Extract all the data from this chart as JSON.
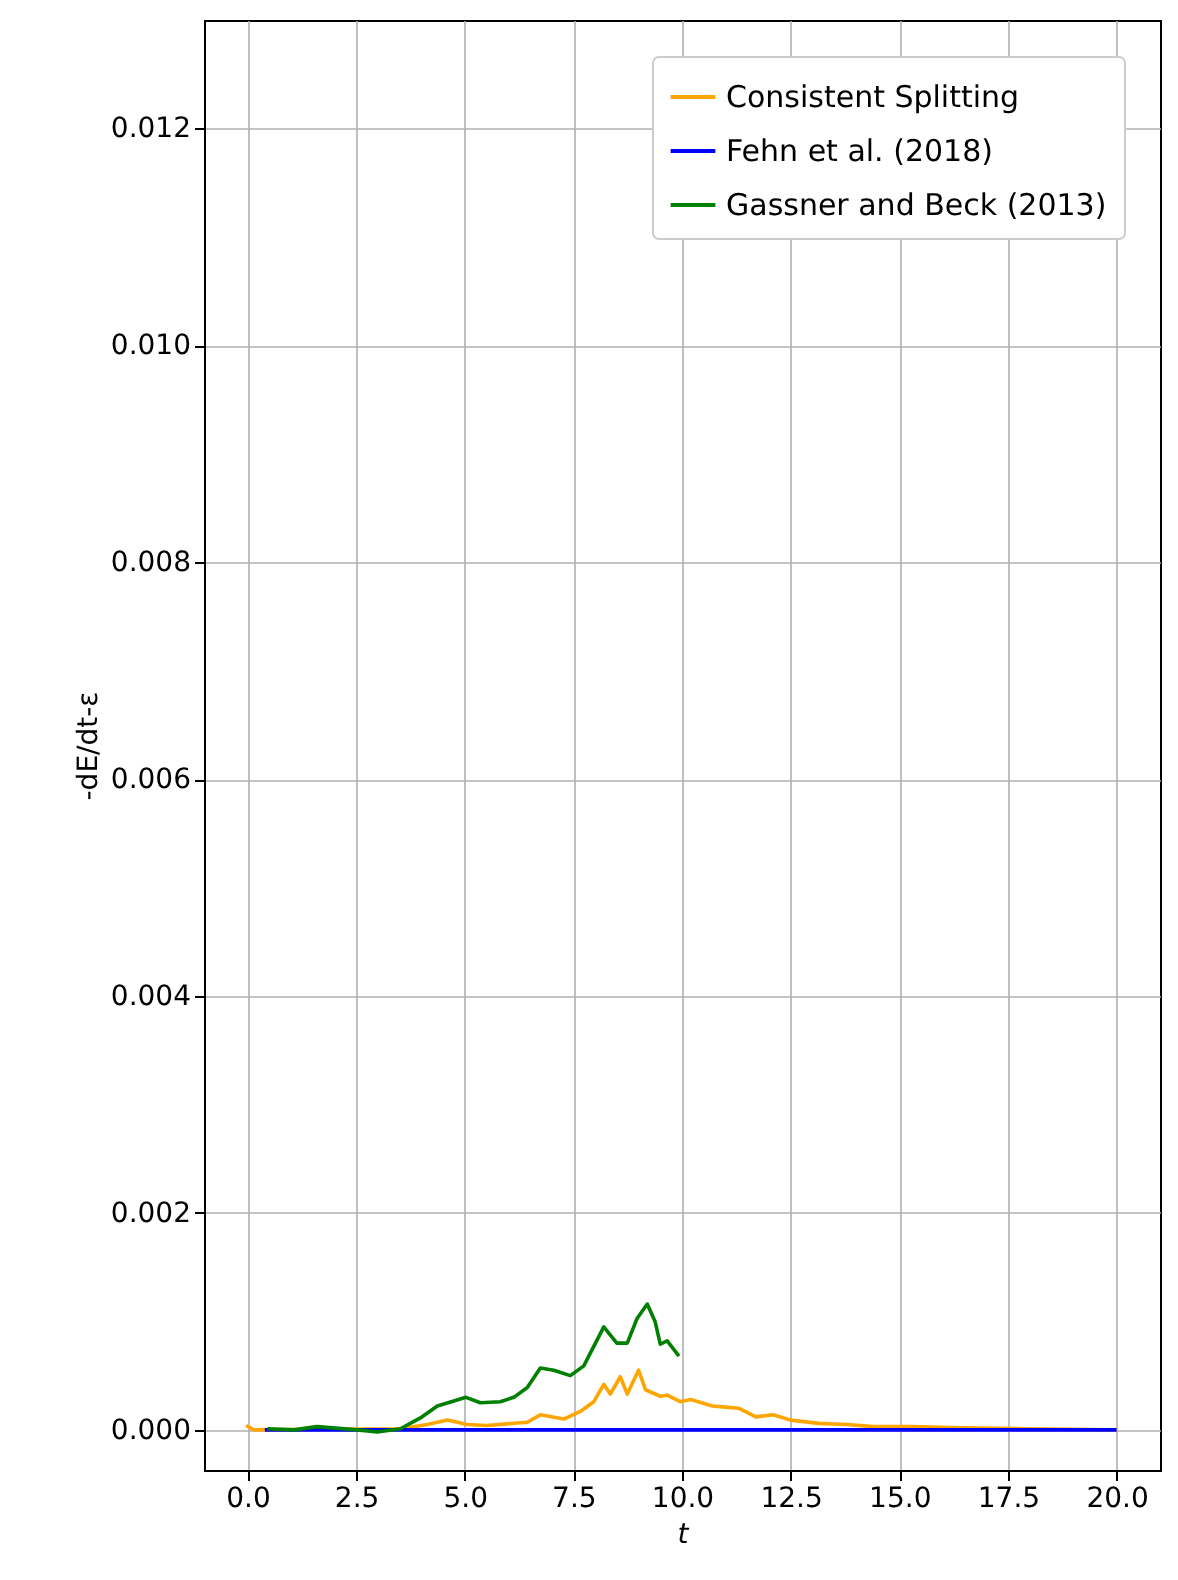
{
  "chart_data": {
    "type": "line",
    "xlabel": "t",
    "ylabel": "-dE/dt-ε",
    "xlim": [
      -1,
      21
    ],
    "ylim": [
      -0.00037,
      0.013
    ],
    "xticks": [
      {
        "value": 0,
        "label": "0.0"
      },
      2.5,
      {
        "value": 5,
        "label": "5.0"
      },
      7.5,
      {
        "value": 10,
        "label": "10.0"
      },
      12.5,
      {
        "value": 15,
        "label": "15.0"
      },
      17.5,
      {
        "value": 20,
        "label": "20.0"
      }
    ],
    "yticks": [
      {
        "value": 0,
        "label": "0.000"
      },
      0.002,
      0.004,
      0.006,
      0.008,
      {
        "value": 0.01,
        "label": "0.010"
      },
      0.012
    ],
    "grid": true,
    "legend": "top right",
    "series": [
      {
        "name": "Consistent Splitting",
        "color": "#ffa500",
        "x": [
          -0.03,
          0.15,
          3.52,
          4.14,
          4.6,
          5.06,
          5.5,
          6.44,
          6.74,
          7.28,
          7.66,
          7.97,
          8.2,
          8.35,
          8.58,
          8.74,
          9.0,
          9.16,
          9.5,
          9.66,
          9.96,
          10.2,
          10.7,
          11.0,
          11.3,
          11.7,
          12.1,
          12.5,
          13.15,
          13.8,
          14.4,
          15.3,
          16.4,
          17.9,
          20
        ],
        "values": [
          4e-05,
          0,
          1e-05,
          5e-05,
          9e-05,
          5e-05,
          4e-05,
          7e-05,
          0.00014,
          0.0001,
          0.00017,
          0.00026,
          0.00042,
          0.00033,
          0.00049,
          0.00033,
          0.00055,
          0.00037,
          0.00031,
          0.00032,
          0.00026,
          0.00028,
          0.00022,
          0.00021,
          0.0002,
          0.00012,
          0.00014,
          9e-05,
          6e-05,
          5e-05,
          3e-05,
          3e-05,
          2e-05,
          1e-05,
          0
        ]
      },
      {
        "name": "Fehn et al. (2018)",
        "color": "#0000ff",
        "x": [
          0.4,
          20
        ],
        "values": [
          0,
          0
        ]
      },
      {
        "name": "Gassner and Beck (2013)",
        "color": "#008000",
        "x": [
          0.46,
          1.07,
          1.6,
          2.53,
          2.99,
          3.52,
          3.98,
          4.37,
          5.03,
          5.36,
          5.82,
          6.13,
          6.44,
          6.74,
          7.05,
          7.43,
          7.74,
          8.2,
          8.5,
          8.74,
          8.97,
          9.2,
          9.38,
          9.5,
          9.66,
          9.93
        ],
        "values": [
          1e-05,
          0,
          3e-05,
          0,
          -2e-05,
          1e-05,
          0.00011,
          0.00022,
          0.0003,
          0.00025,
          0.00026,
          0.0003,
          0.00039,
          0.00057,
          0.00055,
          0.0005,
          0.00059,
          0.00095,
          0.0008,
          0.0008,
          0.00103,
          0.00116,
          0.001,
          0.00079,
          0.00082,
          0.00068
        ]
      }
    ]
  }
}
